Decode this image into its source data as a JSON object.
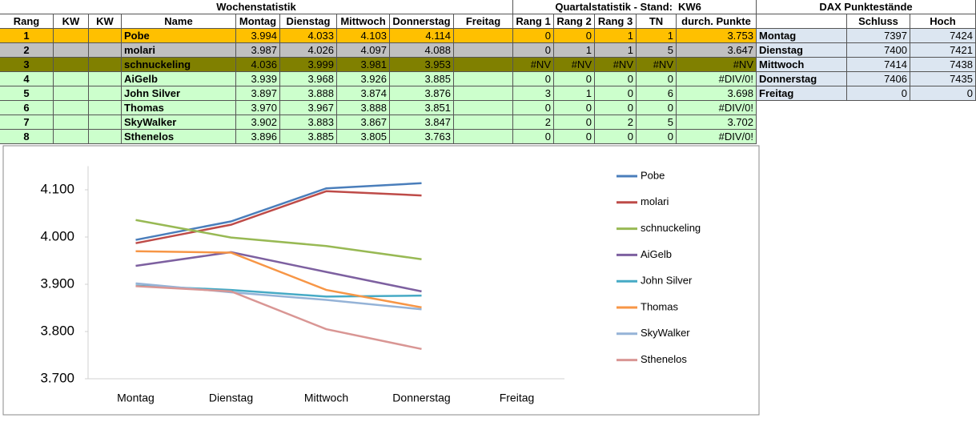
{
  "tables": {
    "week_title": "Wochenstatistik",
    "quarter_title": "Quartalstatistik - Stand:",
    "quarter_week": "KW6",
    "dax_title": "DAX Punktestände",
    "headers": [
      "Rang",
      "KW",
      "KW",
      "Name",
      "Montag",
      "Dienstag",
      "Mittwoch",
      "Donnerstag",
      "Freitag",
      "Rang 1",
      "Rang 2",
      "Rang 3",
      "TN",
      "durch. Punkte"
    ],
    "dax_headers": [
      "Schluss",
      "Hoch"
    ],
    "rows": [
      {
        "rank": "1",
        "name": "Pobe",
        "days": [
          "3.994",
          "4.033",
          "4.103",
          "4.114"
        ],
        "quarter": [
          "0",
          "0",
          "1",
          "1",
          "3.753"
        ]
      },
      {
        "rank": "2",
        "name": "molari",
        "days": [
          "3.987",
          "4.026",
          "4.097",
          "4.088"
        ],
        "quarter": [
          "0",
          "1",
          "1",
          "5",
          "3.647"
        ]
      },
      {
        "rank": "3",
        "name": "schnuckeling",
        "days": [
          "4.036",
          "3.999",
          "3.981",
          "3.953"
        ],
        "quarter": [
          "#NV",
          "#NV",
          "#NV",
          "#NV",
          "#NV"
        ]
      },
      {
        "rank": "4",
        "name": "AiGelb",
        "days": [
          "3.939",
          "3.968",
          "3.926",
          "3.885"
        ],
        "quarter": [
          "0",
          "0",
          "0",
          "0",
          "#DIV/0!"
        ]
      },
      {
        "rank": "5",
        "name": "John Silver",
        "days": [
          "3.897",
          "3.888",
          "3.874",
          "3.876"
        ],
        "quarter": [
          "3",
          "1",
          "0",
          "6",
          "3.698"
        ]
      },
      {
        "rank": "6",
        "name": "Thomas",
        "days": [
          "3.970",
          "3.967",
          "3.888",
          "3.851"
        ],
        "quarter": [
          "0",
          "0",
          "0",
          "0",
          "#DIV/0!"
        ]
      },
      {
        "rank": "7",
        "name": "SkyWalker",
        "days": [
          "3.902",
          "3.883",
          "3.867",
          "3.847"
        ],
        "quarter": [
          "2",
          "0",
          "2",
          "5",
          "3.702"
        ]
      },
      {
        "rank": "8",
        "name": "Sthenelos",
        "days": [
          "3.896",
          "3.885",
          "3.805",
          "3.763"
        ],
        "quarter": [
          "0",
          "0",
          "0",
          "0",
          "#DIV/0!"
        ]
      }
    ],
    "dax_rows": [
      {
        "day": "Montag",
        "values": [
          "7397",
          "7424"
        ]
      },
      {
        "day": "Dienstag",
        "values": [
          "7400",
          "7421"
        ]
      },
      {
        "day": "Mittwoch",
        "values": [
          "7414",
          "7438"
        ]
      },
      {
        "day": "Donnerstag",
        "values": [
          "7406",
          "7435"
        ]
      },
      {
        "day": "Freitag",
        "values": [
          "0",
          "0"
        ]
      }
    ]
  },
  "chart_data": {
    "type": "line",
    "categories": [
      "Montag",
      "Dienstag",
      "Mittwoch",
      "Donnerstag",
      "Freitag"
    ],
    "ylim": [
      3.7,
      4.15
    ],
    "yticks": [
      {
        "value": 3.7,
        "label": "3.700"
      },
      {
        "value": 3.8,
        "label": "3.800"
      },
      {
        "value": 3.9,
        "label": "3.900"
      },
      {
        "value": 4.0,
        "label": "4.000"
      },
      {
        "value": 4.1,
        "label": "4.100"
      }
    ],
    "legend": "right",
    "series": [
      {
        "name": "Pobe",
        "color": "#4a7ebb",
        "values": [
          3.994,
          4.033,
          4.103,
          4.114,
          null
        ]
      },
      {
        "name": "molari",
        "color": "#be4b48",
        "values": [
          3.987,
          4.026,
          4.097,
          4.088,
          null
        ]
      },
      {
        "name": "schnuckeling",
        "color": "#98b954",
        "values": [
          4.036,
          3.999,
          3.981,
          3.953,
          null
        ]
      },
      {
        "name": "AiGelb",
        "color": "#7d60a0",
        "values": [
          3.939,
          3.968,
          3.926,
          3.885,
          null
        ]
      },
      {
        "name": "John Silver",
        "color": "#46aac5",
        "values": [
          3.897,
          3.888,
          3.874,
          3.876,
          null
        ]
      },
      {
        "name": "Thomas",
        "color": "#f79646",
        "values": [
          3.97,
          3.967,
          3.888,
          3.851,
          null
        ]
      },
      {
        "name": "SkyWalker",
        "color": "#95b3d7",
        "values": [
          3.902,
          3.883,
          3.867,
          3.847,
          null
        ]
      },
      {
        "name": "Sthenelos",
        "color": "#d99694",
        "values": [
          3.896,
          3.885,
          3.805,
          3.763,
          null
        ]
      }
    ]
  }
}
